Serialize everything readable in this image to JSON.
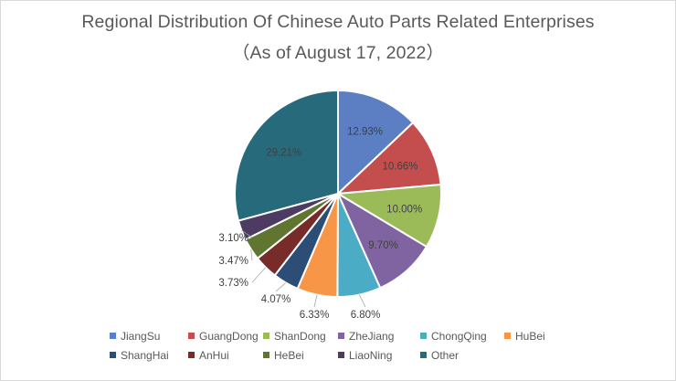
{
  "chart_data": {
    "type": "pie",
    "title": "Regional Distribution Of Chinese Auto Parts Related Enterprises",
    "subtitle": "（As of August 17, 2022）",
    "legend_position": "bottom",
    "slices": [
      {
        "name": "JiangSu",
        "value": 12.93,
        "label": "12.93%",
        "color": "#5B7FC2"
      },
      {
        "name": "GuangDong",
        "value": 10.66,
        "label": "10.66%",
        "color": "#C44E4E"
      },
      {
        "name": "ShanDong",
        "value": 10.0,
        "label": "10.00%",
        "color": "#9BBB59"
      },
      {
        "name": "ZheJiang",
        "value": 9.7,
        "label": "9.70%",
        "color": "#8064A2"
      },
      {
        "name": "ChongQing",
        "value": 6.8,
        "label": "6.80%",
        "color": "#4BACC6"
      },
      {
        "name": "HuBei",
        "value": 6.33,
        "label": "6.33%",
        "color": "#F79646"
      },
      {
        "name": "ShangHai",
        "value": 4.07,
        "label": "4.07%",
        "color": "#2C4D75"
      },
      {
        "name": "AnHui",
        "value": 3.73,
        "label": "3.73%",
        "color": "#772C2A"
      },
      {
        "name": "HeBei",
        "value": 3.47,
        "label": "3.47%",
        "color": "#5F7530"
      },
      {
        "name": "LiaoNing",
        "value": 3.1,
        "label": "3.10%",
        "color": "#4D3B62"
      },
      {
        "name": "Other",
        "value": 29.21,
        "label": "29.21%",
        "color": "#276A7C"
      }
    ]
  }
}
